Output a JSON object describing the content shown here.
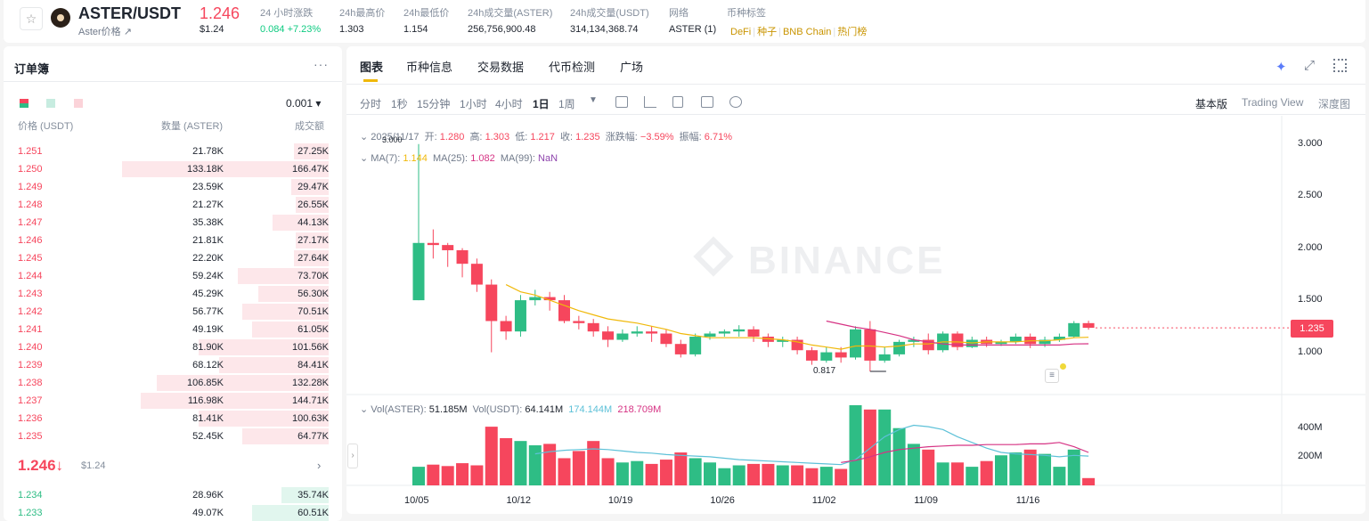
{
  "header": {
    "symbol": "ASTER/USDT",
    "subtitle": "Aster价格 ↗",
    "last_price": "1.246",
    "last_price_usd": "$1.24",
    "stats": [
      {
        "label": "24 小时涨跌",
        "value": "0.084 +7.23%",
        "color": "#0ecb81"
      },
      {
        "label": "24h最高价",
        "value": "1.303",
        "color": "#202630"
      },
      {
        "label": "24h最低价",
        "value": "1.154",
        "color": "#202630"
      },
      {
        "label": "24h成交量(ASTER)",
        "value": "256,756,900.48",
        "color": "#202630"
      },
      {
        "label": "24h成交量(USDT)",
        "value": "314,134,368.74",
        "color": "#202630"
      },
      {
        "label": "网络",
        "value": "ASTER (1)",
        "color": "#202630"
      }
    ],
    "tags_label": "币种标签",
    "tags": [
      "DeFi",
      "种子",
      "BNB Chain",
      "热门榜"
    ]
  },
  "orderbook": {
    "title": "订单簿",
    "more": "···",
    "precision": "0.001 ▾",
    "headers": {
      "price": "价格 (USDT)",
      "qty": "数量 (ASTER)",
      "total": "成交额"
    },
    "asks": [
      {
        "price": "1.251",
        "qty": "21.78K",
        "total": "27.25K",
        "depth": 0.17
      },
      {
        "price": "1.250",
        "qty": "133.18K",
        "total": "166.47K",
        "depth": 1.0
      },
      {
        "price": "1.249",
        "qty": "23.59K",
        "total": "29.47K",
        "depth": 0.18
      },
      {
        "price": "1.248",
        "qty": "21.27K",
        "total": "26.55K",
        "depth": 0.16
      },
      {
        "price": "1.247",
        "qty": "35.38K",
        "total": "44.13K",
        "depth": 0.27
      },
      {
        "price": "1.246",
        "qty": "21.81K",
        "total": "27.17K",
        "depth": 0.16
      },
      {
        "price": "1.245",
        "qty": "22.20K",
        "total": "27.64K",
        "depth": 0.17
      },
      {
        "price": "1.244",
        "qty": "59.24K",
        "total": "73.70K",
        "depth": 0.44
      },
      {
        "price": "1.243",
        "qty": "45.29K",
        "total": "56.30K",
        "depth": 0.34
      },
      {
        "price": "1.242",
        "qty": "56.77K",
        "total": "70.51K",
        "depth": 0.42
      },
      {
        "price": "1.241",
        "qty": "49.19K",
        "total": "61.05K",
        "depth": 0.37
      },
      {
        "price": "1.240",
        "qty": "81.90K",
        "total": "101.56K",
        "depth": 0.63
      },
      {
        "price": "1.239",
        "qty": "68.12K",
        "total": "84.41K",
        "depth": 0.53
      },
      {
        "price": "1.238",
        "qty": "106.85K",
        "total": "132.28K",
        "depth": 0.83
      },
      {
        "price": "1.237",
        "qty": "116.98K",
        "total": "144.71K",
        "depth": 0.91
      },
      {
        "price": "1.236",
        "qty": "81.41K",
        "total": "100.63K",
        "depth": 0.63
      },
      {
        "price": "1.235",
        "qty": "52.45K",
        "total": "64.77K",
        "depth": 0.42
      }
    ],
    "mid_price": "1.246↓",
    "mid_usd": "$1.24",
    "bids": [
      {
        "price": "1.234",
        "qty": "28.96K",
        "total": "35.74K",
        "depth": 0.23
      },
      {
        "price": "1.233",
        "qty": "49.07K",
        "total": "60.51K",
        "depth": 0.37
      }
    ]
  },
  "chart_panel": {
    "tabs": [
      "图表",
      "币种信息",
      "交易数据",
      "代币检测",
      "广场"
    ],
    "intervals": [
      "分时",
      "1秒",
      "15分钟",
      "1小时",
      "4小时",
      "1日",
      "1周"
    ],
    "active_interval": "1日",
    "views": [
      "基本版",
      "Trading View",
      "深度图"
    ],
    "ohlc": {
      "date": "2025/11/17",
      "open_label": "开:",
      "open": "1.280",
      "high_label": "高:",
      "high": "1.303",
      "low_label": "低:",
      "low": "1.217",
      "close_label": "收:",
      "close": "1.235",
      "chg_label": "涨跌幅:",
      "chg": "−3.59%",
      "amp_label": "振幅:",
      "amp": "6.71%"
    },
    "ma_line": {
      "ma7_label": "MA(7):",
      "ma7": "1.144",
      "ma25_label": "MA(25):",
      "ma25": "1.082",
      "ma99_label": "MA(99):",
      "ma99": "NaN"
    },
    "vol_line": {
      "a_label": "Vol(ASTER):",
      "a": "51.185M",
      "b_label": "Vol(USDT):",
      "b": "64.141M",
      "c": "174.144M",
      "d": "218.709M"
    },
    "watermark": "BINANCE",
    "current_price_tag": "1.235",
    "high_marker": "3.000",
    "low_marker": "0.817"
  },
  "colors": {
    "up": "#2ebd85",
    "down": "#f6465d",
    "accent": "#f0b90b",
    "ma7": "#f0b90b",
    "ma25": "#d63384",
    "vol_ma": "#5dc1d8"
  },
  "chart_data": {
    "type": "candlestick",
    "interval": "1d",
    "price_ticks": [
      "3.000",
      "2.500",
      "2.000",
      "1.500",
      "1.000"
    ],
    "volume_ticks": [
      "400M",
      "200M"
    ],
    "x_ticks": [
      "10/05",
      "10/12",
      "10/19",
      "10/26",
      "11/02",
      "11/09",
      "11/16"
    ],
    "ylim": [
      0.62,
      3.1
    ],
    "volume_ylim": [
      0,
      560
    ],
    "candles": [
      [
        1.5,
        2.05,
        3.0,
        1.5,
        130
      ],
      [
        2.05,
        2.03,
        2.18,
        1.9,
        145
      ],
      [
        2.03,
        1.98,
        2.05,
        1.82,
        135
      ],
      [
        1.98,
        1.85,
        2.0,
        1.72,
        155
      ],
      [
        1.85,
        1.65,
        1.9,
        1.58,
        140
      ],
      [
        1.65,
        1.3,
        1.7,
        1.0,
        410
      ],
      [
        1.3,
        1.2,
        1.35,
        1.12,
        330
      ],
      [
        1.2,
        1.5,
        1.55,
        1.15,
        310
      ],
      [
        1.5,
        1.53,
        1.6,
        1.45,
        280
      ],
      [
        1.53,
        1.5,
        1.58,
        1.4,
        290
      ],
      [
        1.5,
        1.3,
        1.55,
        1.28,
        190
      ],
      [
        1.3,
        1.28,
        1.35,
        1.22,
        240
      ],
      [
        1.28,
        1.2,
        1.32,
        1.15,
        310
      ],
      [
        1.2,
        1.12,
        1.25,
        1.05,
        190
      ],
      [
        1.12,
        1.18,
        1.22,
        1.1,
        160
      ],
      [
        1.18,
        1.2,
        1.25,
        1.15,
        170
      ],
      [
        1.2,
        1.18,
        1.25,
        1.1,
        150
      ],
      [
        1.18,
        1.08,
        1.22,
        1.05,
        180
      ],
      [
        1.08,
        0.98,
        1.12,
        0.95,
        230
      ],
      [
        0.98,
        1.15,
        1.18,
        0.96,
        190
      ],
      [
        1.15,
        1.18,
        1.2,
        1.12,
        160
      ],
      [
        1.18,
        1.2,
        1.22,
        1.15,
        120
      ],
      [
        1.2,
        1.22,
        1.26,
        1.15,
        140
      ],
      [
        1.22,
        1.15,
        1.25,
        1.1,
        150
      ],
      [
        1.15,
        1.1,
        1.18,
        1.05,
        150
      ],
      [
        1.1,
        1.12,
        1.15,
        1.05,
        140
      ],
      [
        1.12,
        1.02,
        1.15,
        0.98,
        140
      ],
      [
        1.02,
        0.92,
        1.05,
        0.88,
        120
      ],
      [
        0.92,
        1.0,
        1.05,
        0.9,
        130
      ],
      [
        1.0,
        0.95,
        1.05,
        0.9,
        115
      ],
      [
        0.95,
        1.22,
        1.25,
        0.93,
        560
      ],
      [
        1.22,
        0.92,
        1.3,
        0.817,
        530
      ],
      [
        0.92,
        0.98,
        1.05,
        0.9,
        530
      ],
      [
        0.98,
        1.1,
        1.12,
        0.96,
        400
      ],
      [
        1.1,
        1.12,
        1.15,
        1.05,
        290
      ],
      [
        1.12,
        1.02,
        1.18,
        0.98,
        250
      ],
      [
        1.02,
        1.18,
        1.2,
        1.0,
        160
      ],
      [
        1.18,
        1.05,
        1.2,
        1.02,
        160
      ],
      [
        1.05,
        1.12,
        1.15,
        1.04,
        130
      ],
      [
        1.12,
        1.08,
        1.15,
        1.05,
        170
      ],
      [
        1.08,
        1.1,
        1.12,
        1.06,
        210
      ],
      [
        1.1,
        1.15,
        1.18,
        1.08,
        230
      ],
      [
        1.15,
        1.08,
        1.18,
        1.04,
        250
      ],
      [
        1.08,
        1.12,
        1.15,
        1.05,
        220
      ],
      [
        1.12,
        1.15,
        1.18,
        1.1,
        130
      ],
      [
        1.15,
        1.28,
        1.3,
        1.14,
        250
      ],
      [
        1.28,
        1.235,
        1.303,
        1.217,
        51
      ]
    ],
    "ma7": [
      null,
      null,
      null,
      null,
      null,
      null,
      1.65,
      1.58,
      1.55,
      1.5,
      1.45,
      1.4,
      1.36,
      1.32,
      1.3,
      1.28,
      1.25,
      1.22,
      1.18,
      1.16,
      1.14,
      1.14,
      1.14,
      1.14,
      1.13,
      1.12,
      1.1,
      1.07,
      1.05,
      1.03,
      1.06,
      1.06,
      1.05,
      1.06,
      1.08,
      1.08,
      1.1,
      1.1,
      1.09,
      1.1,
      1.1,
      1.1,
      1.11,
      1.11,
      1.12,
      1.14,
      1.144
    ],
    "ma25": [
      null,
      null,
      null,
      null,
      null,
      null,
      null,
      null,
      null,
      null,
      null,
      null,
      null,
      null,
      null,
      null,
      null,
      null,
      null,
      null,
      null,
      null,
      null,
      null,
      null,
      null,
      null,
      null,
      1.3,
      1.27,
      1.24,
      1.22,
      1.19,
      1.16,
      1.12,
      1.1,
      1.08,
      1.07,
      1.07,
      1.07,
      1.07,
      1.07,
      1.07,
      1.07,
      1.07,
      1.08,
      1.082
    ],
    "vol_ma": [
      null,
      null,
      null,
      null,
      null,
      null,
      null,
      null,
      220,
      235,
      245,
      250,
      255,
      250,
      240,
      230,
      225,
      215,
      210,
      205,
      200,
      190,
      180,
      175,
      170,
      165,
      160,
      155,
      150,
      145,
      180,
      260,
      340,
      390,
      420,
      410,
      390,
      340,
      300,
      260,
      230,
      220,
      215,
      210,
      200,
      210,
      205
    ],
    "vol_ma2": [
      null,
      null,
      null,
      null,
      null,
      null,
      null,
      null,
      null,
      null,
      null,
      null,
      null,
      null,
      null,
      null,
      null,
      null,
      null,
      null,
      null,
      null,
      null,
      null,
      null,
      null,
      null,
      null,
      null,
      160,
      175,
      200,
      230,
      250,
      260,
      270,
      275,
      280,
      280,
      285,
      285,
      285,
      290,
      290,
      300,
      270,
      230
    ]
  }
}
